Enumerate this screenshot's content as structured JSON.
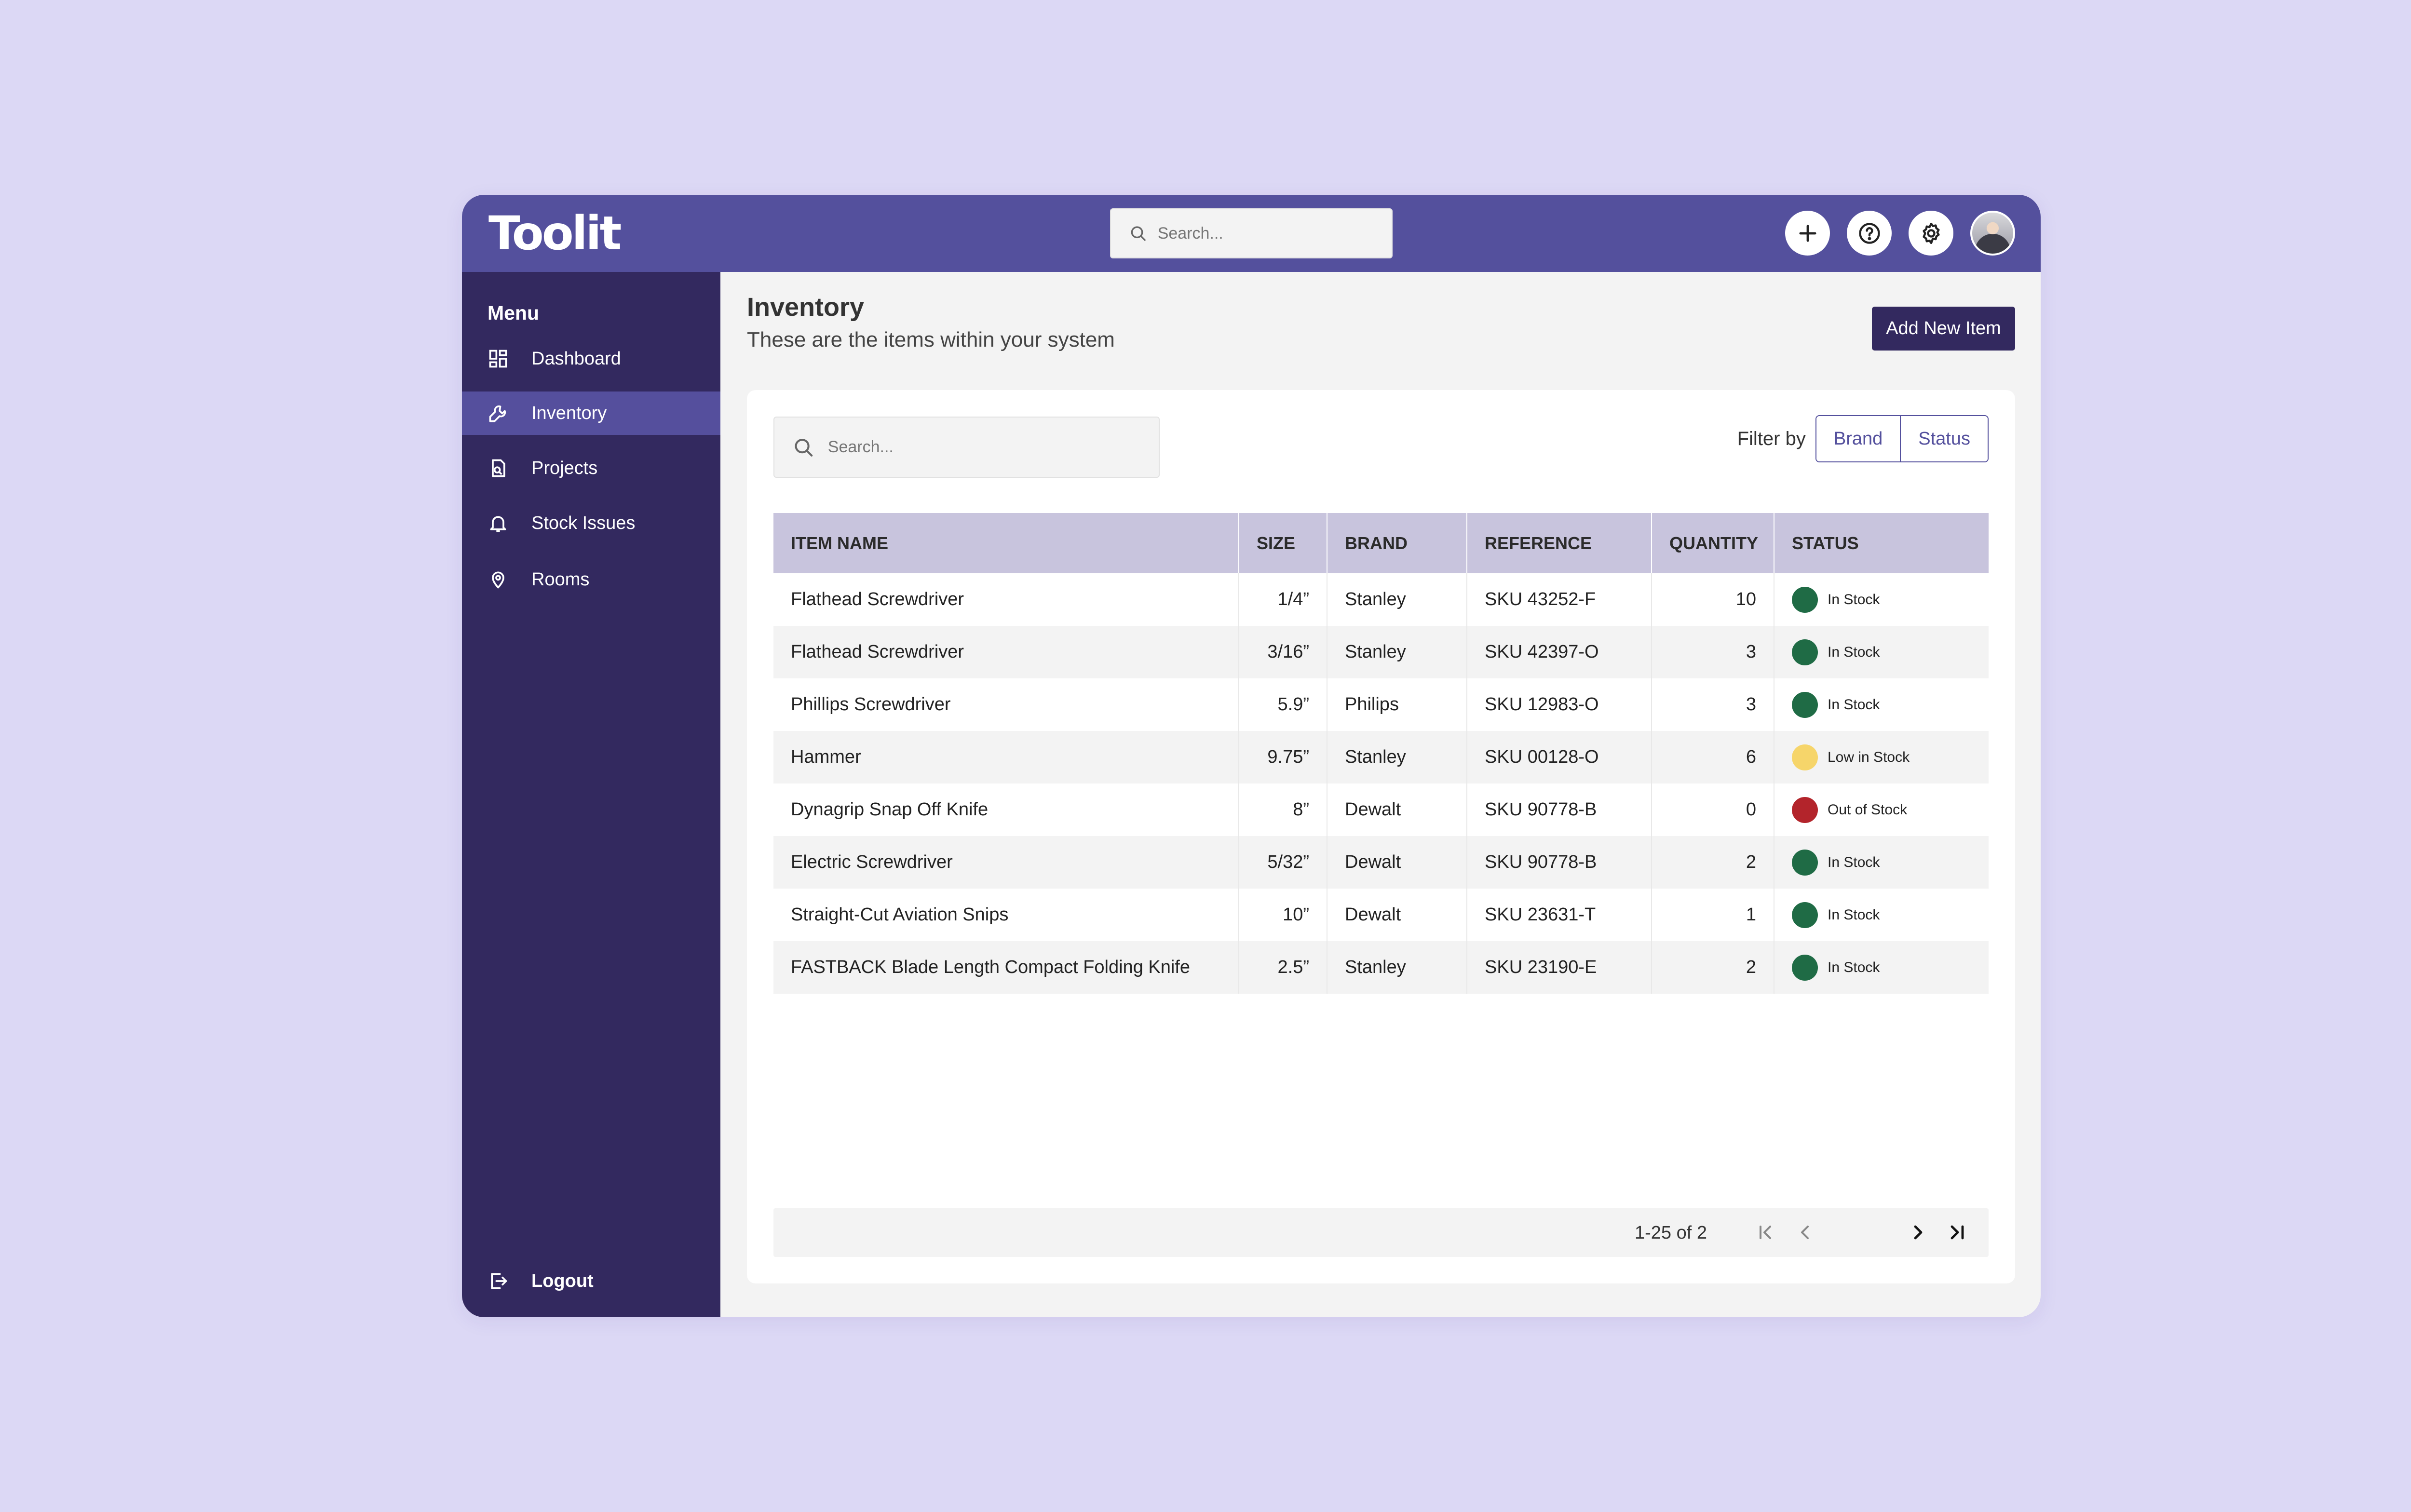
{
  "app": {
    "logo": "Toolit",
    "search_placeholder": "Search..."
  },
  "topbar": {
    "icons": [
      "plus-icon",
      "help-icon",
      "settings-icon",
      "avatar"
    ]
  },
  "sidebar": {
    "menu_label": "Menu",
    "items": [
      {
        "label": "Dashboard",
        "icon": "dashboard-icon",
        "active": false
      },
      {
        "label": "Inventory",
        "icon": "wrench-icon",
        "active": true
      },
      {
        "label": "Projects",
        "icon": "projects-icon",
        "active": false
      },
      {
        "label": "Stock Issues",
        "icon": "bell-icon",
        "active": false
      },
      {
        "label": "Rooms",
        "icon": "location-pin-icon",
        "active": false
      }
    ],
    "logout_label": "Logout"
  },
  "page": {
    "title": "Inventory",
    "subtitle": "These are the items within your system",
    "add_button": "Add New Item"
  },
  "table_controls": {
    "search_placeholder": "Search...",
    "filter_label": "Filter by",
    "filters": [
      "Brand",
      "Status"
    ]
  },
  "table": {
    "columns": [
      "ITEM NAME",
      "SIZE",
      "BRAND",
      "REFERENCE",
      "QUANTITY",
      "STATUS"
    ],
    "rows": [
      {
        "name": "Flathead Screwdriver",
        "size": "1/4”",
        "brand": "Stanley",
        "reference": "SKU 43252-F",
        "quantity": "10",
        "status": "In Stock"
      },
      {
        "name": "Flathead Screwdriver",
        "size": "3/16”",
        "brand": "Stanley",
        "reference": "SKU 42397-O",
        "quantity": "3",
        "status": "In Stock"
      },
      {
        "name": "Phillips Screwdriver",
        "size": "5.9”",
        "brand": "Philips",
        "reference": "SKU 12983-O",
        "quantity": "3",
        "status": "In Stock"
      },
      {
        "name": "Hammer",
        "size": "9.75”",
        "brand": "Stanley",
        "reference": "SKU 00128-O",
        "quantity": "6",
        "status": "Low in Stock"
      },
      {
        "name": "Dynagrip Snap Off Knife",
        "size": "8”",
        "brand": "Dewalt",
        "reference": "SKU 90778-B",
        "quantity": "0",
        "status": "Out of Stock"
      },
      {
        "name": "Electric Screwdriver",
        "size": "5/32”",
        "brand": "Dewalt",
        "reference": "SKU 90778-B",
        "quantity": "2",
        "status": "In Stock"
      },
      {
        "name": "Straight-Cut Aviation Snips",
        "size": "10”",
        "brand": "Dewalt",
        "reference": "SKU 23631-T",
        "quantity": "1",
        "status": "In Stock"
      },
      {
        "name": "FASTBACK Blade Length Compact Folding Knife",
        "size": "2.5”",
        "brand": "Stanley",
        "reference": "SKU 23190-E",
        "quantity": "2",
        "status": "In Stock"
      }
    ]
  },
  "status_colors": {
    "In Stock": "#1f6b45",
    "Low in Stock": "#f6d56a",
    "Out of Stock": "#b3242b"
  },
  "pagination": {
    "range_text": "1-25 of 2"
  },
  "colors": {
    "topbar": "#54509d",
    "sidebar": "#33295f",
    "active_item": "#554f9d",
    "background": "#dcd8f5"
  }
}
